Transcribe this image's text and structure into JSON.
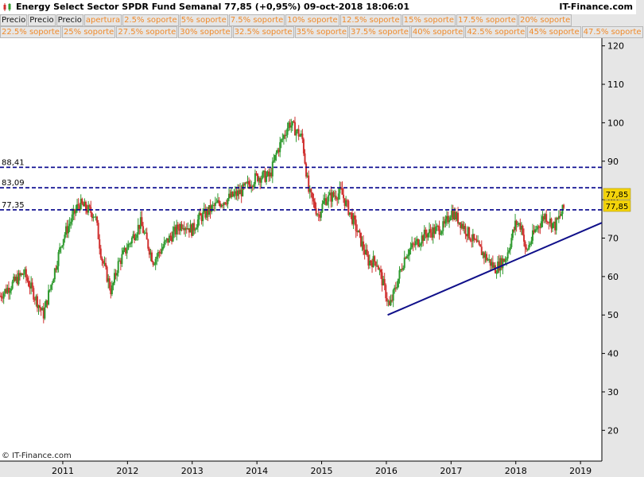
{
  "header": {
    "title": "Energy Select Sector SPDR Fund   Semanal   77,85 (+0,95%)   09-oct-2018 18:06:01",
    "brand": "IT-Finance.com"
  },
  "chips_row1": [
    "Precio",
    "Precio",
    "Precio",
    "apertura",
    "2.5% soporte",
    "5% soporte",
    "7.5% soporte",
    "10% soporte",
    "12.5% soporte",
    "15% soporte",
    "17.5% soporte",
    "20% soporte"
  ],
  "chips_row2": [
    "22.5% soporte",
    "25% soporte",
    "27.5% soporte",
    "30% soporte",
    "32.5% soporte",
    "35% soporte",
    "37.5% soporte",
    "40% soporte",
    "42.5% soporte",
    "45% soporte",
    "47.5% soporte"
  ],
  "footer": {
    "copyright": "© IT-Finance.com"
  },
  "chart_data": {
    "type": "candlestick",
    "title": "Energy Select Sector SPDR Fund",
    "period": "Semanal",
    "last_price": "77,85",
    "change": "+0,95%",
    "ylim": [
      12,
      122
    ],
    "yticks": [
      20,
      30,
      40,
      50,
      60,
      70,
      80,
      90,
      100,
      110,
      120
    ],
    "xlim": [
      2010.03,
      2019.33
    ],
    "xticks": [
      2011,
      2012,
      2013,
      2014,
      2015,
      2016,
      2017,
      2018,
      2019
    ],
    "horizontal_lines": [
      {
        "label": "88,41",
        "value": 88.41
      },
      {
        "label": "83,09",
        "value": 83.09
      },
      {
        "label": "77,35",
        "value": 77.35
      }
    ],
    "price_tags": [
      "77,85",
      "77,85"
    ],
    "trendline": {
      "x": [
        2016.02,
        2019.33
      ],
      "y": [
        50,
        74
      ]
    },
    "price_path": [
      [
        2010.03,
        55
      ],
      [
        2010.4,
        61
      ],
      [
        2010.7,
        50
      ],
      [
        2011.0,
        70
      ],
      [
        2011.25,
        79
      ],
      [
        2011.5,
        76
      ],
      [
        2011.6,
        65
      ],
      [
        2011.75,
        56
      ],
      [
        2011.85,
        63
      ],
      [
        2012.2,
        74
      ],
      [
        2012.4,
        64
      ],
      [
        2012.6,
        69
      ],
      [
        2012.85,
        74
      ],
      [
        2013.0,
        72
      ],
      [
        2013.1,
        75
      ],
      [
        2013.4,
        79
      ],
      [
        2013.75,
        82
      ],
      [
        2014.0,
        86
      ],
      [
        2014.2,
        86
      ],
      [
        2014.3,
        92
      ],
      [
        2014.5,
        100
      ],
      [
        2014.7,
        96
      ],
      [
        2014.8,
        82
      ],
      [
        2014.95,
        76
      ],
      [
        2015.05,
        80
      ],
      [
        2015.3,
        82
      ],
      [
        2015.5,
        74
      ],
      [
        2015.72,
        64
      ],
      [
        2015.85,
        64
      ],
      [
        2016.05,
        52
      ],
      [
        2016.3,
        66
      ],
      [
        2016.6,
        71
      ],
      [
        2016.9,
        73
      ],
      [
        2017.0,
        77
      ],
      [
        2017.15,
        74
      ],
      [
        2017.4,
        68
      ],
      [
        2017.68,
        62
      ],
      [
        2017.85,
        65
      ],
      [
        2018.0,
        74
      ],
      [
        2018.1,
        73
      ],
      [
        2018.15,
        66
      ],
      [
        2018.3,
        72
      ],
      [
        2018.45,
        76
      ],
      [
        2018.6,
        73
      ],
      [
        2018.75,
        78
      ]
    ],
    "colors": {
      "up": "#2f9a2f",
      "down": "#d0302f",
      "support": "#00008a",
      "trendline": "#10108a",
      "tag": "#f4d40a"
    }
  }
}
